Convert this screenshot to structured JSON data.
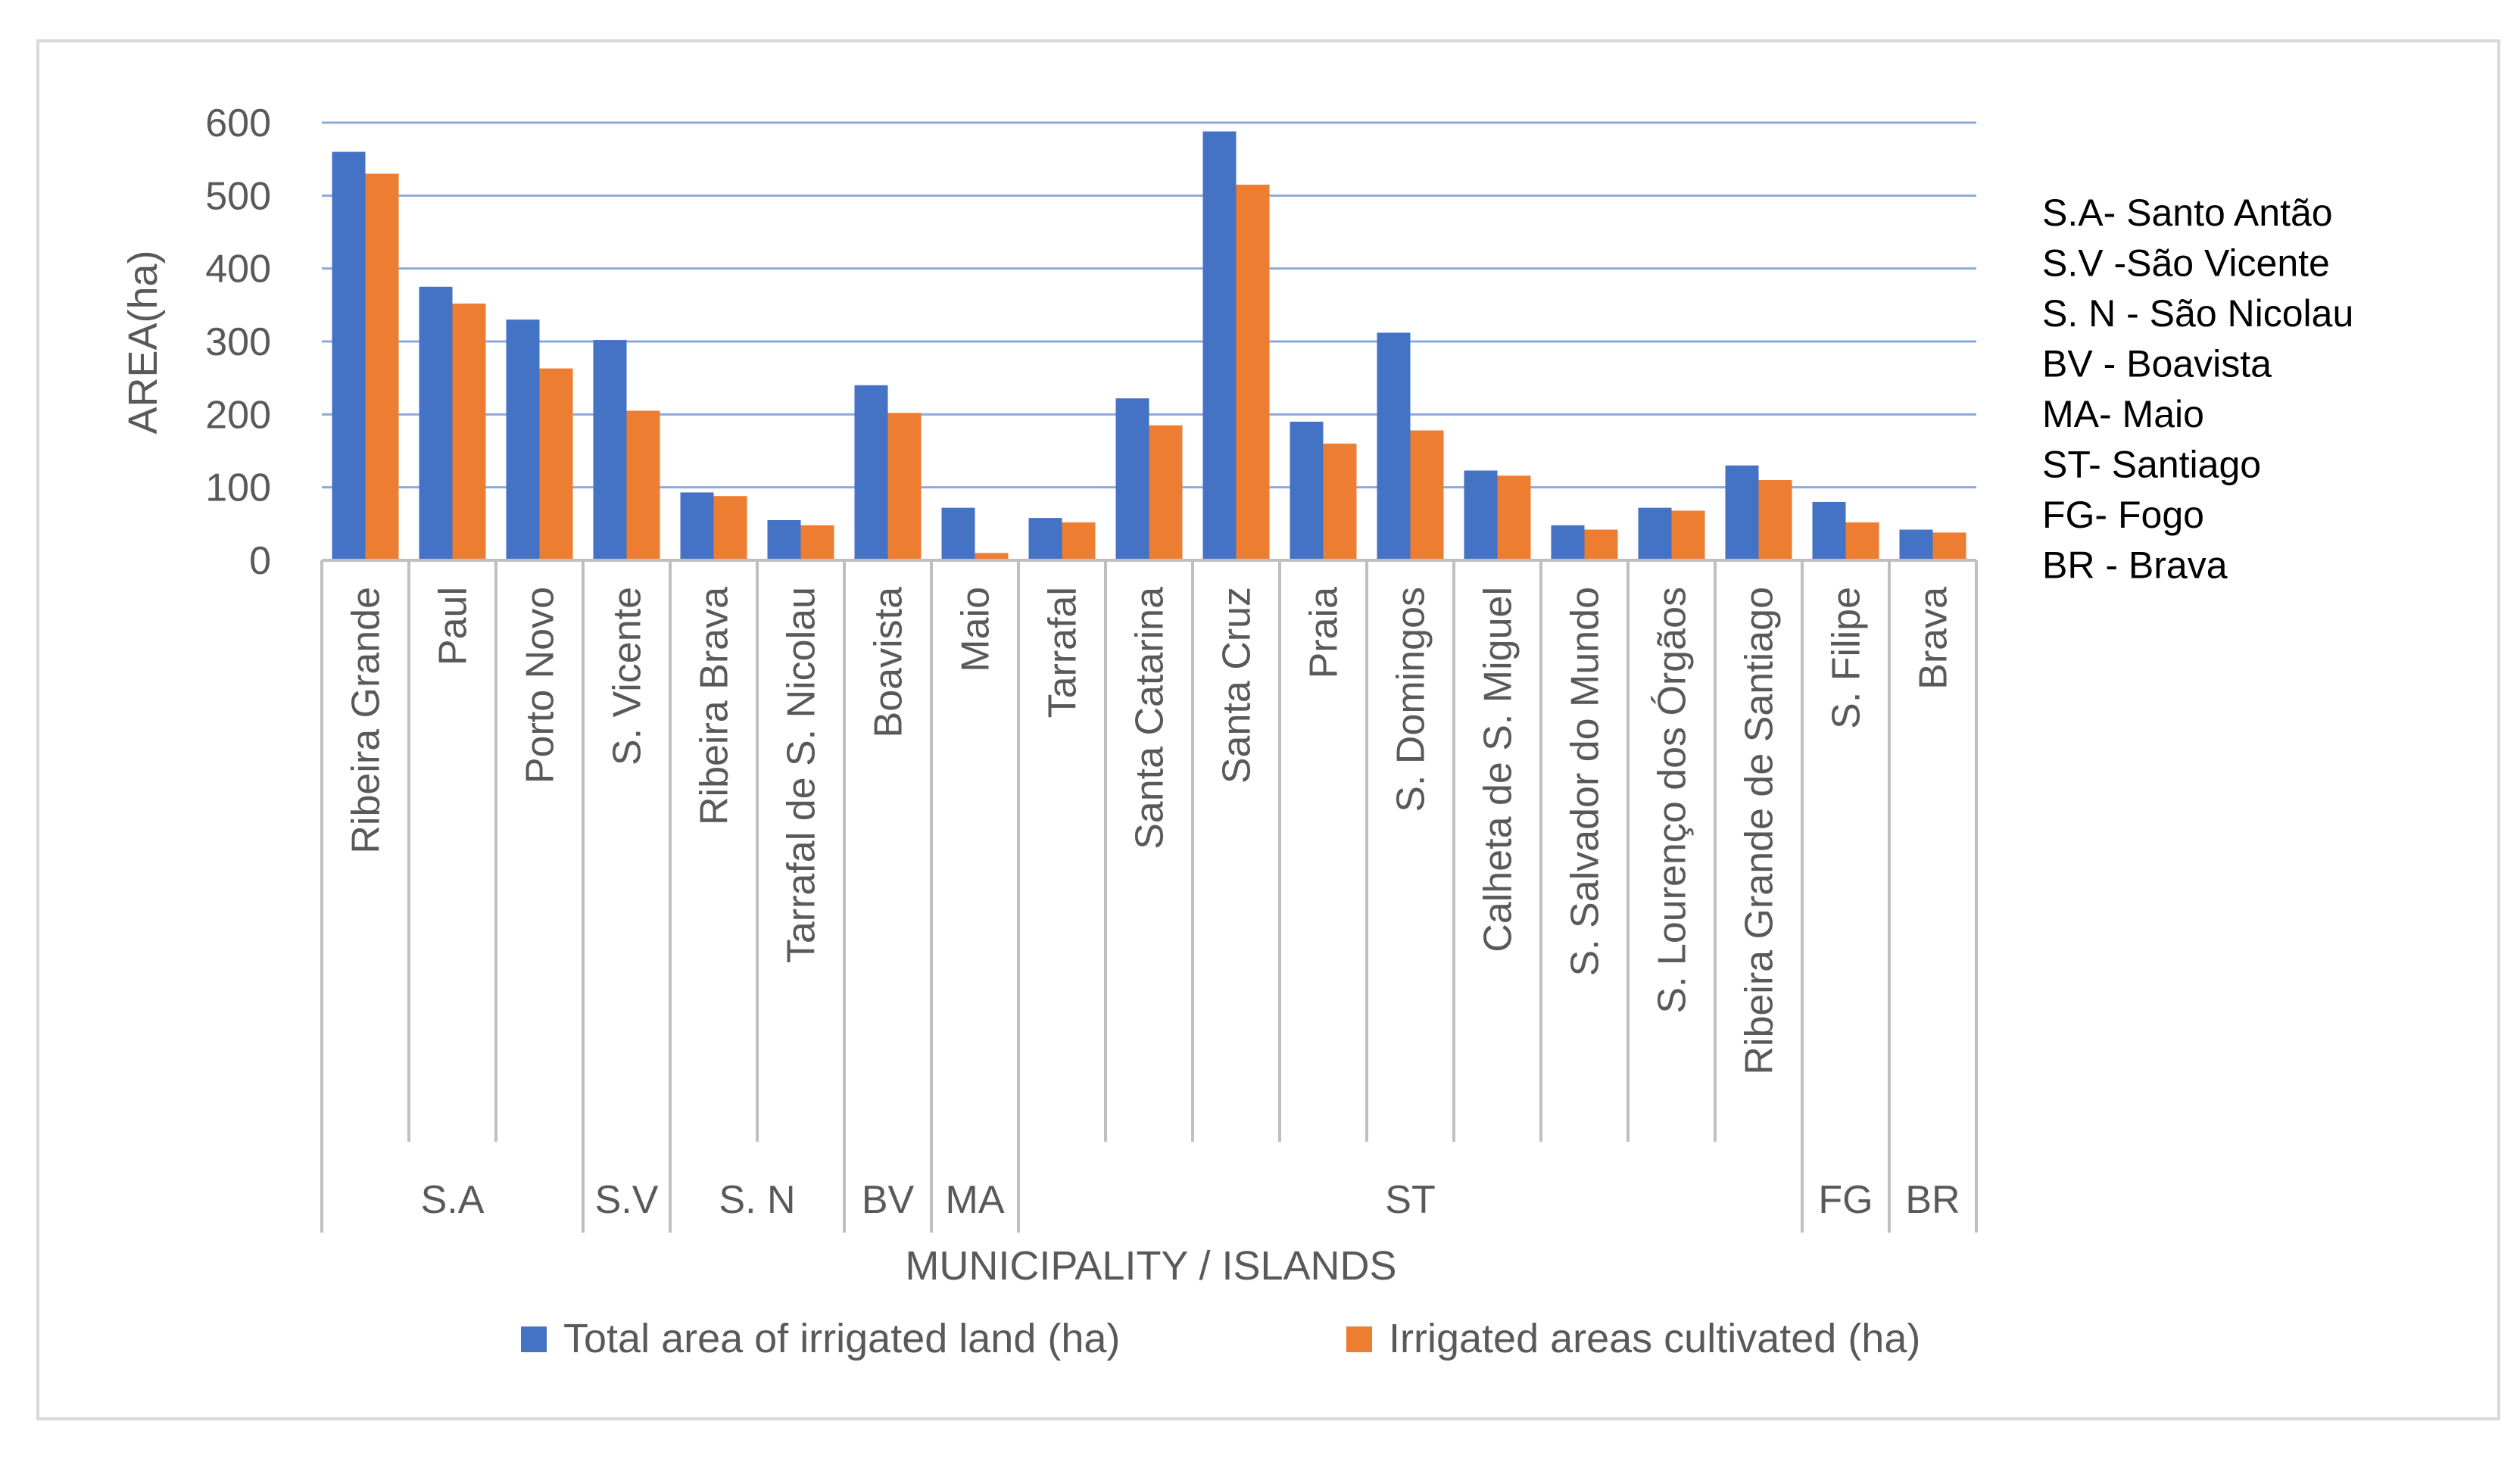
{
  "chart_data": {
    "type": "bar",
    "title": "",
    "xlabel": "MUNICIPALITY / ISLANDS",
    "ylabel": "AREA(ha)",
    "ylim": [
      0,
      600
    ],
    "yticks": [
      0,
      100,
      200,
      300,
      400,
      500,
      600
    ],
    "grid": true,
    "legend_position": "bottom",
    "categories": [
      "Ribeira Grande",
      "Paul",
      "Porto Novo",
      "S. Vicente",
      "Ribeira Brava",
      "Tarrafal de S. Nicolau",
      "Boavista",
      "Maio",
      "Tarrafal",
      "Santa Catarina",
      "Santa Cruz",
      "Praia",
      "S. Domingos",
      "Calheta de S. Miguel",
      "S. Salvador do Mundo",
      "S. Lourenço dos Órgãos",
      "Ribeira Grande de Santiago",
      "S. Filipe",
      "Brava"
    ],
    "groups": [
      {
        "label": "S.A",
        "count": 3
      },
      {
        "label": "S.V",
        "count": 1
      },
      {
        "label": "S. N",
        "count": 2
      },
      {
        "label": "BV",
        "count": 1
      },
      {
        "label": "MA",
        "count": 1
      },
      {
        "label": "ST",
        "count": 9
      },
      {
        "label": "FG",
        "count": 1
      },
      {
        "label": "BR",
        "count": 1
      }
    ],
    "series": [
      {
        "name": "Total area of irrigated land (ha)",
        "color": "#4472c4",
        "values": [
          560,
          375,
          330,
          302,
          93,
          55,
          240,
          72,
          58,
          222,
          588,
          190,
          312,
          123,
          48,
          72,
          130,
          80,
          42
        ]
      },
      {
        "name": "Irrigated areas cultivated  (ha)",
        "color": "#ed7d31",
        "values": [
          530,
          352,
          263,
          205,
          88,
          48,
          202,
          10,
          52,
          185,
          515,
          160,
          178,
          116,
          42,
          68,
          110,
          52,
          38
        ]
      }
    ],
    "annotations": [
      "S.A- Santo Antão",
      "S.V -São Vicente",
      "S. N - São Nicolau",
      "BV - Boavista",
      "MA- Maio",
      "ST-  Santiago",
      "FG- Fogo",
      "BR -  Brava"
    ]
  }
}
